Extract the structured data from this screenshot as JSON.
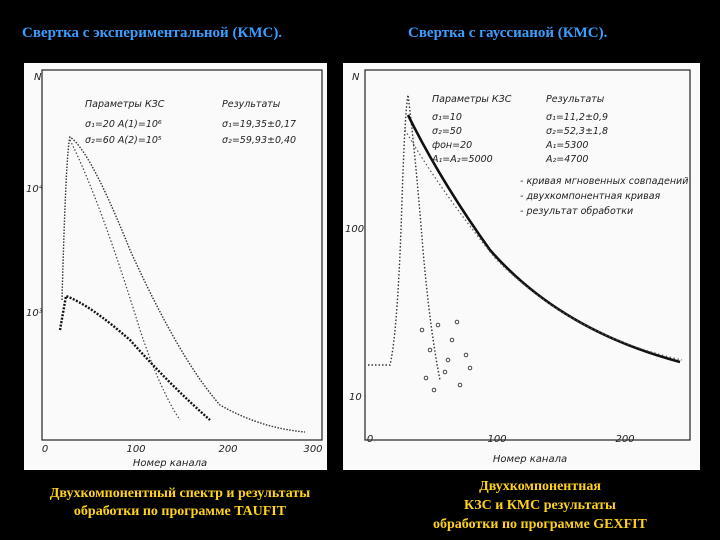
{
  "slide": {
    "titles": [
      "Свертка с экспериментальной (КМС).",
      "Свертка с гауссианой (КМС)."
    ],
    "left_figure": {
      "y_axis_label": "N",
      "y_tick_labels": [
        "10⁴",
        "10³"
      ],
      "x_tick_labels": [
        "0",
        "100",
        "200",
        "300"
      ],
      "x_axis_label": "Номер канала",
      "params_heading": "Параметры КЗС",
      "params": [
        "σ₁=20   A(1)=10⁶",
        "σ₂=60   A(2)=10⁵"
      ],
      "results_heading": "Результаты",
      "results": [
        "σ₁=19,35±0,17",
        "σ₂=59,93±0,40"
      ],
      "caption": [
        "Двухкомпонентный спектр и результаты",
        "обработки по программе TAUFIT"
      ]
    },
    "right_figure": {
      "y_axis_label": "N",
      "y_tick_labels": [
        "100",
        "10"
      ],
      "x_tick_labels": [
        "0",
        "100",
        "200"
      ],
      "x_axis_label": "Номер канала",
      "params_heading": "Параметры КЗС",
      "params": [
        "σ₁=10",
        "σ₂=50",
        "фон=20",
        "A₁=A₂=5000"
      ],
      "results_heading": "Результаты",
      "results": [
        "σ₁=11,2±0,9",
        "σ₂=52,3±1,8",
        "A₁=5300",
        "A₂=4700"
      ],
      "legend": [
        "- кривая мгновенных совпадений",
        "- двухкомпонентная кривая",
        "- результат обработки"
      ],
      "caption": [
        "Двухкомпонентная",
        "КЗС и КМС   результаты",
        "обработки по программе GEXFIT"
      ]
    }
  }
}
